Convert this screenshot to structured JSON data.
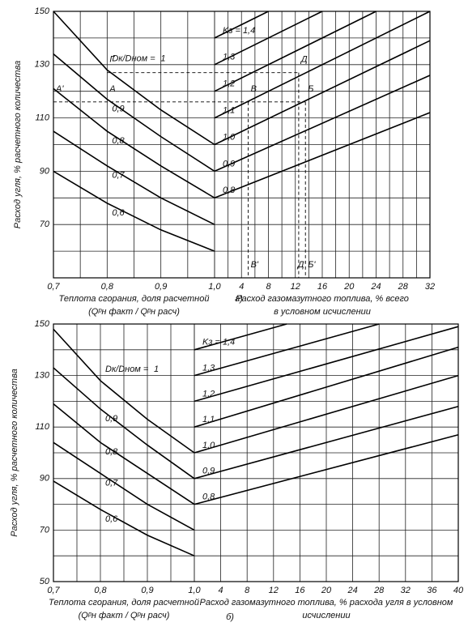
{
  "chart_data": [
    {
      "type": "line",
      "panel_label": "а)",
      "y_label": "Расход угля, % расчетного количества",
      "ylim": [
        50,
        150
      ],
      "yticks": [
        70,
        90,
        110,
        130,
        150
      ],
      "ygrid": [
        50,
        60,
        70,
        80,
        90,
        100,
        110,
        120,
        130,
        140,
        150
      ],
      "left": {
        "x_label": [
          "Теплота сгорания, доля расчетной",
          "(Qᵖн факт / Qᵖн расч)"
        ],
        "xlim": [
          0.7,
          1.0
        ],
        "xticks": [
          {
            "value": 0.7,
            "label": "0,7"
          },
          {
            "value": 0.8,
            "label": "0,8"
          },
          {
            "value": 0.9,
            "label": "0,9"
          },
          {
            "value": 1.0,
            "label": "1,0"
          }
        ],
        "xgrid": [
          0.7,
          0.75,
          0.8,
          0.85,
          0.9,
          0.95,
          1.0
        ],
        "series_title": "Dк/Dном =",
        "series": [
          {
            "name": "1",
            "x": [
              0.7,
              0.8,
              0.9,
              1.0
            ],
            "values": [
              150,
              128,
              113,
              100
            ]
          },
          {
            "name": "0,9",
            "x": [
              0.7,
              0.8,
              0.9,
              1.0
            ],
            "values": [
              134,
              117,
              103,
              90
            ]
          },
          {
            "name": "0,8",
            "x": [
              0.7,
              0.8,
              0.9,
              1.0
            ],
            "values": [
              121,
              105,
              92,
              80
            ]
          },
          {
            "name": "0,7",
            "x": [
              0.7,
              0.8,
              0.9,
              1.0
            ],
            "values": [
              105,
              92,
              80,
              70
            ]
          },
          {
            "name": "0,6",
            "x": [
              0.7,
              0.8,
              0.9,
              1.0
            ],
            "values": [
              90,
              78,
              68,
              60
            ]
          }
        ]
      },
      "right": {
        "x_label": [
          "Расход газомазутного топлива, % всего",
          "в условном исчислении"
        ],
        "xlim": [
          0,
          32
        ],
        "xticks": [
          4,
          8,
          12,
          16,
          20,
          24,
          28,
          32
        ],
        "xgrid": [
          0,
          2,
          4,
          6,
          8,
          10,
          12,
          14,
          16,
          18,
          20,
          22,
          24,
          26,
          28,
          30,
          32
        ],
        "series_title": "Kз =",
        "series": [
          {
            "name": "1,4",
            "x": [
              0,
              8
            ],
            "values": [
              140,
              150
            ]
          },
          {
            "name": "1,3",
            "x": [
              0,
              16
            ],
            "values": [
              130,
              150
            ]
          },
          {
            "name": "1,2",
            "x": [
              0,
              24
            ],
            "values": [
              120,
              150
            ]
          },
          {
            "name": "1,1",
            "x": [
              0,
              32
            ],
            "values": [
              110,
              150
            ]
          },
          {
            "name": "1,0",
            "x": [
              0,
              32
            ],
            "values": [
              100,
              139
            ]
          },
          {
            "name": "0,9",
            "x": [
              0,
              32
            ],
            "values": [
              90,
              126
            ]
          },
          {
            "name": "0,8",
            "x": [
              0,
              32
            ],
            "values": [
              80,
              112
            ]
          }
        ]
      },
      "annotations": [
        {
          "text": "A'",
          "panel": "left",
          "x": 0.7,
          "y": 119
        },
        {
          "text": "Г",
          "panel": "left",
          "x": 0.8,
          "y": 130
        },
        {
          "text": "А",
          "panel": "left",
          "x": 0.8,
          "y": 119
        },
        {
          "text": "Д",
          "panel": "right",
          "x": 12.5,
          "y": 130
        },
        {
          "text": "В",
          "panel": "right",
          "x": 5,
          "y": 119
        },
        {
          "text": "Б",
          "panel": "right",
          "x": 13.5,
          "y": 119
        },
        {
          "text": "В'",
          "panel": "right",
          "x": 5,
          "y": 53
        },
        {
          "text": "Д'",
          "panel": "right",
          "x": 12,
          "y": 53
        },
        {
          "text": "Б'",
          "panel": "right",
          "x": 13.5,
          "y": 53
        }
      ],
      "guides": [
        {
          "from": {
            "panel": "left",
            "x": 0.8,
            "y": 127
          },
          "to": {
            "panel": "right",
            "x": 12.5,
            "y": 127
          }
        },
        {
          "from": {
            "panel": "left",
            "x": 0.7,
            "y": 116
          },
          "to": {
            "panel": "right",
            "x": 13.5,
            "y": 116
          }
        },
        {
          "from": {
            "panel": "right",
            "x": 5,
            "y": 116
          },
          "to": {
            "panel": "right",
            "x": 5,
            "y": 50
          }
        },
        {
          "from": {
            "panel": "right",
            "x": 12.5,
            "y": 127
          },
          "to": {
            "panel": "right",
            "x": 12.5,
            "y": 50
          }
        },
        {
          "from": {
            "panel": "right",
            "x": 13.5,
            "y": 116
          },
          "to": {
            "panel": "right",
            "x": 13.5,
            "y": 50
          }
        }
      ]
    },
    {
      "type": "line",
      "panel_label": "б)",
      "y_label": "Расход угля, % расчетного количества",
      "ylim": [
        50,
        150
      ],
      "yticks": [
        50,
        70,
        90,
        110,
        130,
        150
      ],
      "ygrid": [
        50,
        60,
        70,
        80,
        90,
        100,
        110,
        120,
        130,
        140,
        150
      ],
      "left": {
        "x_label": [
          "Теплота сгорания, доля расчетной",
          "(Qᵖн факт / Qᵖн расч)"
        ],
        "xlim": [
          0.7,
          1.0
        ],
        "xticks": [
          {
            "value": 0.7,
            "label": "0,7"
          },
          {
            "value": 0.8,
            "label": "0,8"
          },
          {
            "value": 0.9,
            "label": "0,9"
          },
          {
            "value": 1.0,
            "label": "1,0"
          }
        ],
        "xgrid": [
          0.7,
          0.75,
          0.8,
          0.85,
          0.9,
          0.95,
          1.0
        ],
        "series_title": "Dк/Dном =",
        "series": [
          {
            "name": "1",
            "x": [
              0.7,
              0.8,
              0.9,
              1.0
            ],
            "values": [
              148,
              128,
              113,
              100
            ]
          },
          {
            "name": "0,9",
            "x": [
              0.7,
              0.8,
              0.9,
              1.0
            ],
            "values": [
              133,
              117,
              103,
              90
            ]
          },
          {
            "name": "0,8",
            "x": [
              0.7,
              0.8,
              0.9,
              1.0
            ],
            "values": [
              119,
              104,
              92,
              80
            ]
          },
          {
            "name": "0,7",
            "x": [
              0.7,
              0.8,
              0.9,
              1.0
            ],
            "values": [
              104,
              92,
              80,
              70
            ]
          },
          {
            "name": "0,6",
            "x": [
              0.7,
              0.8,
              0.9,
              1.0
            ],
            "values": [
              89,
              78,
              68,
              60
            ]
          }
        ]
      },
      "right": {
        "x_label": [
          "Расход газомазутного топлива, % расхода угля в условном",
          "исчислении"
        ],
        "xlim": [
          0,
          40
        ],
        "xticks": [
          4,
          8,
          12,
          16,
          20,
          24,
          28,
          32,
          36,
          40
        ],
        "xgrid": [
          0,
          4,
          8,
          12,
          16,
          20,
          24,
          28,
          32,
          36,
          40
        ],
        "series_title": "Kз =",
        "series": [
          {
            "name": "1,4",
            "x": [
              0,
              14
            ],
            "values": [
              140,
              150
            ]
          },
          {
            "name": "1,3",
            "x": [
              0,
              28
            ],
            "values": [
              130,
              150
            ]
          },
          {
            "name": "1,2",
            "x": [
              0,
              40
            ],
            "values": [
              120,
              149
            ]
          },
          {
            "name": "1,1",
            "x": [
              0,
              40
            ],
            "values": [
              110,
              141
            ]
          },
          {
            "name": "1,0",
            "x": [
              0,
              40
            ],
            "values": [
              100,
              130
            ]
          },
          {
            "name": "0,9",
            "x": [
              0,
              40
            ],
            "values": [
              90,
              118
            ]
          },
          {
            "name": "0,8",
            "x": [
              0,
              40
            ],
            "values": [
              80,
              107
            ]
          }
        ]
      },
      "annotations": [],
      "guides": []
    }
  ]
}
